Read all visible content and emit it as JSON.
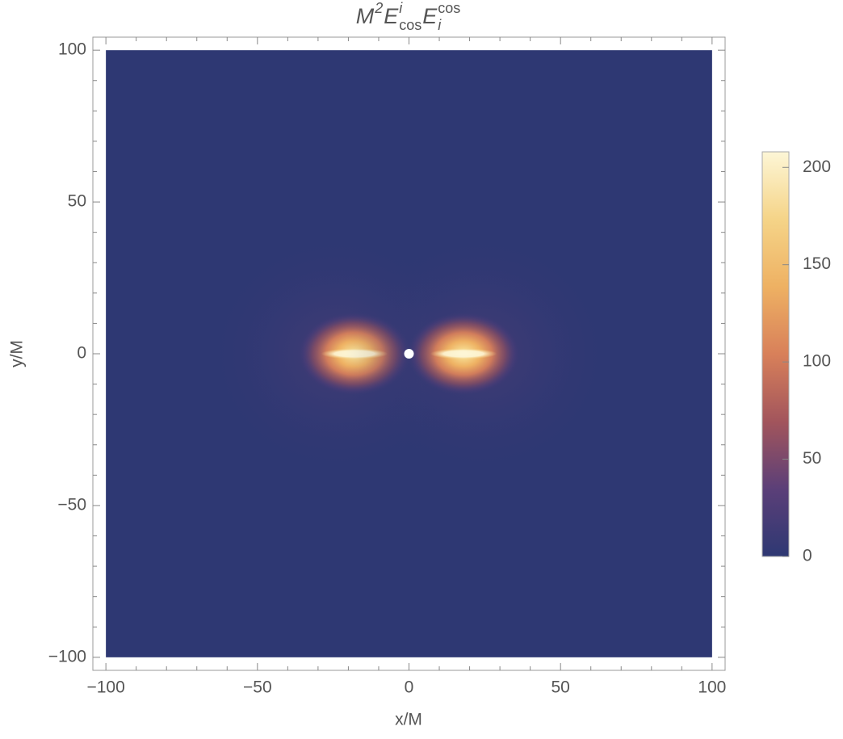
{
  "chart_data": {
    "type": "density",
    "title_parts": [
      {
        "base": "M",
        "sup": "2"
      },
      {
        "base": "E",
        "sup": "i",
        "sub": "cos"
      },
      {
        "base": "E",
        "sup": "cos",
        "sub": "i"
      }
    ],
    "xlabel": "x/M",
    "ylabel": "y/M",
    "xlim": [
      -104.3,
      104.3
    ],
    "ylim": [
      -104.3,
      104.3
    ],
    "extent": [
      -100,
      100
    ],
    "xticks": [
      {
        "value": -100,
        "label": "−100"
      },
      {
        "value": -50,
        "label": "−50"
      },
      0,
      50,
      100
    ],
    "yticks": [
      {
        "value": -100,
        "label": "−100"
      },
      {
        "value": -50,
        "label": "−50"
      },
      0,
      50,
      100
    ],
    "minorticks": [
      -90,
      -80,
      -70,
      -60,
      -40,
      -30,
      -20,
      -10,
      10,
      20,
      30,
      40,
      60,
      70,
      80,
      90
    ],
    "peaks": [
      {
        "x": -18,
        "y": 0,
        "value": 208
      },
      {
        "x": 18,
        "y": 0,
        "value": 208
      }
    ],
    "marker": {
      "x": 0,
      "y": 0
    },
    "colormap": [
      "#2e3873",
      "#5b3f78",
      "#a2555c",
      "#d8805a",
      "#eeb163",
      "#f5d488",
      "#fdf6d6"
    ],
    "clim": [
      0,
      208
    ],
    "cticks": [
      0,
      50,
      100,
      150,
      200
    ]
  }
}
